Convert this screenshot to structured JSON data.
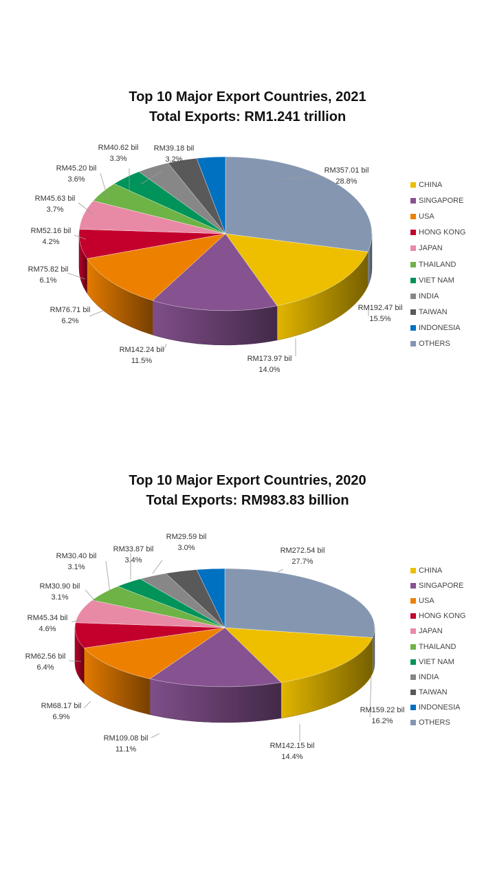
{
  "chart_data": [
    {
      "type": "pie",
      "title": "Top 10 Major Export Countries, 2021",
      "subtitle": "Total Exports: RM1.241 trillion",
      "categories": [
        "CHINA",
        "SINGAPORE",
        "USA",
        "HONG KONG",
        "JAPAN",
        "THAILAND",
        "VIET NAM",
        "INDIA",
        "TAIWAN",
        "INDONESIA",
        "OTHERS"
      ],
      "values": [
        192.47,
        173.97,
        142.24,
        76.71,
        75.82,
        52.16,
        45.63,
        45.2,
        40.62,
        39.18,
        357.01
      ],
      "percentages": [
        15.5,
        14.0,
        11.5,
        6.2,
        6.1,
        4.2,
        3.7,
        3.6,
        3.3,
        3.2,
        28.8
      ],
      "value_labels": [
        "RM192.47 bil",
        "RM173.97 bil",
        "RM142.24 bil",
        "RM76.71 bil",
        "RM75.82 bil",
        "RM52.16 bil",
        "RM45.63 bil",
        "RM45.20 bil",
        "RM40.62 bil",
        "RM39.18 bil",
        "RM357.01 bil"
      ],
      "percent_labels": [
        "15.5%",
        "14.0%",
        "11.5%",
        "6.2%",
        "6.1%",
        "4.2%",
        "3.7%",
        "3.6%",
        "3.3%",
        "3.2%",
        "28.8%"
      ],
      "colors": [
        "#EDBF00",
        "#865290",
        "#EE8000",
        "#C3002C",
        "#E88AA6",
        "#6EB345",
        "#00935A",
        "#878787",
        "#595959",
        "#0070C0",
        "#8597B0"
      ],
      "legend_position": "right"
    },
    {
      "type": "pie",
      "title": "Top 10 Major Export Countries, 2020",
      "subtitle": "Total Exports: RM983.83 billion",
      "categories": [
        "CHINA",
        "SINGAPORE",
        "USA",
        "HONG KONG",
        "JAPAN",
        "THAILAND",
        "VIET NAM",
        "INDIA",
        "TAIWAN",
        "INDONESIA",
        "OTHERS"
      ],
      "values": [
        159.22,
        142.15,
        109.08,
        68.17,
        62.56,
        45.34,
        30.9,
        30.4,
        33.87,
        29.59,
        272.54
      ],
      "percentages": [
        16.2,
        14.4,
        11.1,
        6.9,
        6.4,
        4.6,
        3.1,
        3.1,
        3.4,
        3.0,
        27.7
      ],
      "value_labels": [
        "RM159.22 bil",
        "RM142.15 bil",
        "RM109.08 bil",
        "RM68.17 bil",
        "RM62.56 bil",
        "RM45.34 bil",
        "RM30.90 bil",
        "RM30.40 bil",
        "RM33.87 bil",
        "RM29.59 bil",
        "RM272.54 bil"
      ],
      "percent_labels": [
        "16.2%",
        "14.4%",
        "11.1%",
        "6.9%",
        "6.4%",
        "4.6%",
        "3.1%",
        "3.1%",
        "3.4%",
        "3.0%",
        "27.7%"
      ],
      "colors": [
        "#EDBF00",
        "#865290",
        "#EE8000",
        "#C3002C",
        "#E88AA6",
        "#6EB345",
        "#00935A",
        "#878787",
        "#595959",
        "#0070C0",
        "#8597B0"
      ],
      "legend_position": "right"
    }
  ]
}
